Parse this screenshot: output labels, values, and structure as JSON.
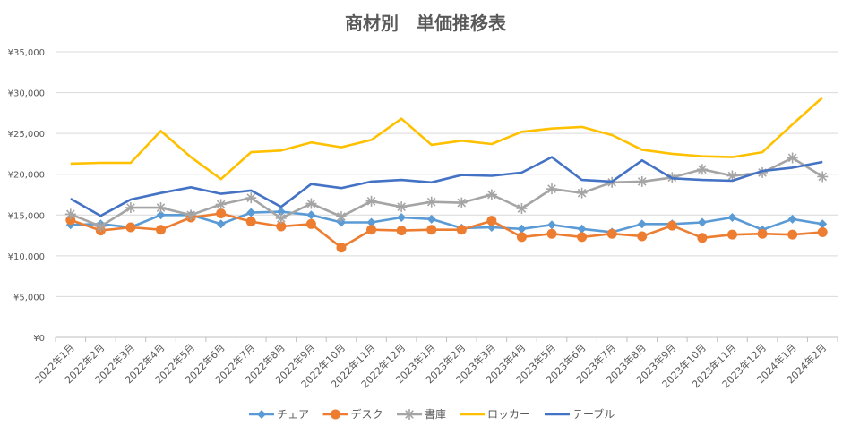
{
  "chart_data": {
    "type": "line",
    "title": "商材別　単価推移表",
    "xlabel": "",
    "ylabel": "",
    "ylim": [
      0,
      35000
    ],
    "yticks": [
      "¥0",
      "¥5,000",
      "¥10,000",
      "¥15,000",
      "¥20,000",
      "¥25,000",
      "¥30,000",
      "¥35,000"
    ],
    "ytick_values": [
      0,
      5000,
      10000,
      15000,
      20000,
      25000,
      30000,
      35000
    ],
    "grid": "horizontal",
    "legend_position": "bottom",
    "categories": [
      "2022年1月",
      "2022年2月",
      "2022年3月",
      "2022年4月",
      "2022年5月",
      "2022年6月",
      "2022年7月",
      "2022年8月",
      "2022年9月",
      "2022年10月",
      "2022年11月",
      "2022年12月",
      "2023年1月",
      "2023年2月",
      "2023年3月",
      "2023年4月",
      "2023年5月",
      "2023年6月",
      "2023年7月",
      "2023年8月",
      "2023年9月",
      "2023年10月",
      "2023年11月",
      "2023年12月",
      "2024年1月",
      "2024年2月"
    ],
    "series": [
      {
        "name": "チェア",
        "color": "#5b9bd5",
        "marker": "diamond",
        "values": [
          13800,
          13900,
          13500,
          15000,
          15000,
          13900,
          15300,
          15400,
          15000,
          14100,
          14100,
          14700,
          14500,
          13400,
          13500,
          13300,
          13800,
          13300,
          12900,
          13900,
          13900,
          14100,
          14700,
          13200,
          14500,
          13900
        ]
      },
      {
        "name": "デスク",
        "color": "#ed7d31",
        "marker": "circle",
        "values": [
          14400,
          13100,
          13500,
          13200,
          14700,
          15200,
          14200,
          13600,
          13900,
          11000,
          13200,
          13100,
          13200,
          13200,
          14300,
          12300,
          12700,
          12300,
          12700,
          12400,
          13700,
          12200,
          12600,
          12700,
          12600,
          12900
        ]
      },
      {
        "name": "書庫",
        "color": "#a5a5a5",
        "marker": "star",
        "values": [
          15100,
          13600,
          15900,
          15900,
          15000,
          16300,
          17100,
          14600,
          16400,
          14800,
          16700,
          16000,
          16600,
          16500,
          17500,
          15800,
          18200,
          17700,
          19000,
          19100,
          19600,
          20600,
          19800,
          20200,
          22000,
          19700
        ]
      },
      {
        "name": "ロッカー",
        "color": "#ffc000",
        "marker": "none",
        "values": [
          21300,
          21400,
          21400,
          25300,
          22100,
          19400,
          22700,
          22900,
          23900,
          23300,
          24200,
          26800,
          23600,
          24100,
          23700,
          25200,
          25600,
          25800,
          24800,
          23000,
          22500,
          22200,
          22100,
          22700,
          26100,
          29400
        ]
      },
      {
        "name": "テーブル",
        "color": "#4472c4",
        "marker": "none",
        "values": [
          17000,
          14900,
          16900,
          17700,
          18400,
          17600,
          18000,
          16000,
          18800,
          18300,
          19100,
          19300,
          19000,
          19900,
          19800,
          20200,
          22100,
          19300,
          19100,
          21700,
          19500,
          19300,
          19200,
          20400,
          20800,
          21500
        ]
      }
    ]
  }
}
